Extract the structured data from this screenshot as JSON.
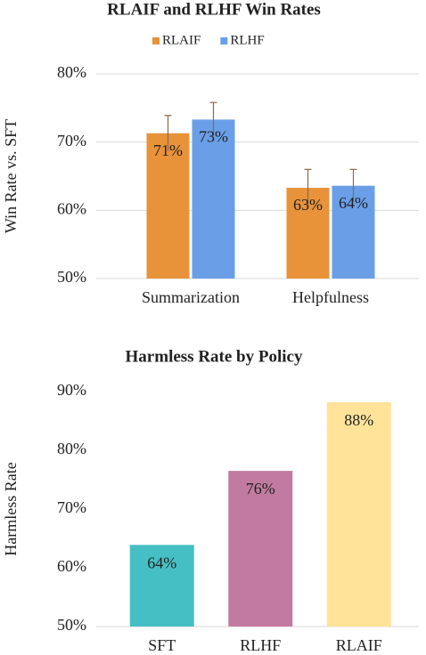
{
  "chart_data": [
    {
      "type": "grouped_bar",
      "title": "RLAIF and RLHF Win Rates",
      "y_label": "Win Rate vs. SFT",
      "categories": [
        "Summarization",
        "Helpfulness"
      ],
      "series": [
        {
          "name": "RLAIF",
          "color": "#E8923A",
          "values": [
            71.3,
            63.3
          ],
          "value_labels": [
            "71%",
            "63%"
          ],
          "errors": [
            2.6,
            2.7
          ]
        },
        {
          "name": "RLHF",
          "color": "#6A9FE8",
          "values": [
            73.3,
            63.6
          ],
          "value_labels": [
            "73%",
            "64%"
          ],
          "errors": [
            2.5,
            2.4
          ]
        }
      ],
      "ylim": [
        50,
        80
      ],
      "yticks": [
        {
          "value": 50,
          "label": "50%"
        },
        {
          "value": 60,
          "label": "60%"
        },
        {
          "value": 70,
          "label": "70%"
        },
        {
          "value": 80,
          "label": "80%"
        }
      ],
      "grid": true,
      "legend": "top"
    },
    {
      "type": "bar",
      "title": "Harmless Rate by Policy",
      "y_label": "Harmless Rate",
      "categories": [
        "SFT",
        "RLHF",
        "RLAIF"
      ],
      "values": [
        63.9,
        76.5,
        88.2
      ],
      "value_labels": [
        "64%",
        "76%",
        "88%"
      ],
      "colors": [
        "#46BFC4",
        "#C27BA0",
        "#FFE399"
      ],
      "ylim": [
        50,
        90
      ],
      "yticks": [
        {
          "value": 50,
          "label": "50%"
        },
        {
          "value": 60,
          "label": "60%"
        },
        {
          "value": 70,
          "label": "70%"
        },
        {
          "value": 80,
          "label": "80%"
        },
        {
          "value": 90,
          "label": "90%"
        }
      ],
      "grid": false
    }
  ]
}
